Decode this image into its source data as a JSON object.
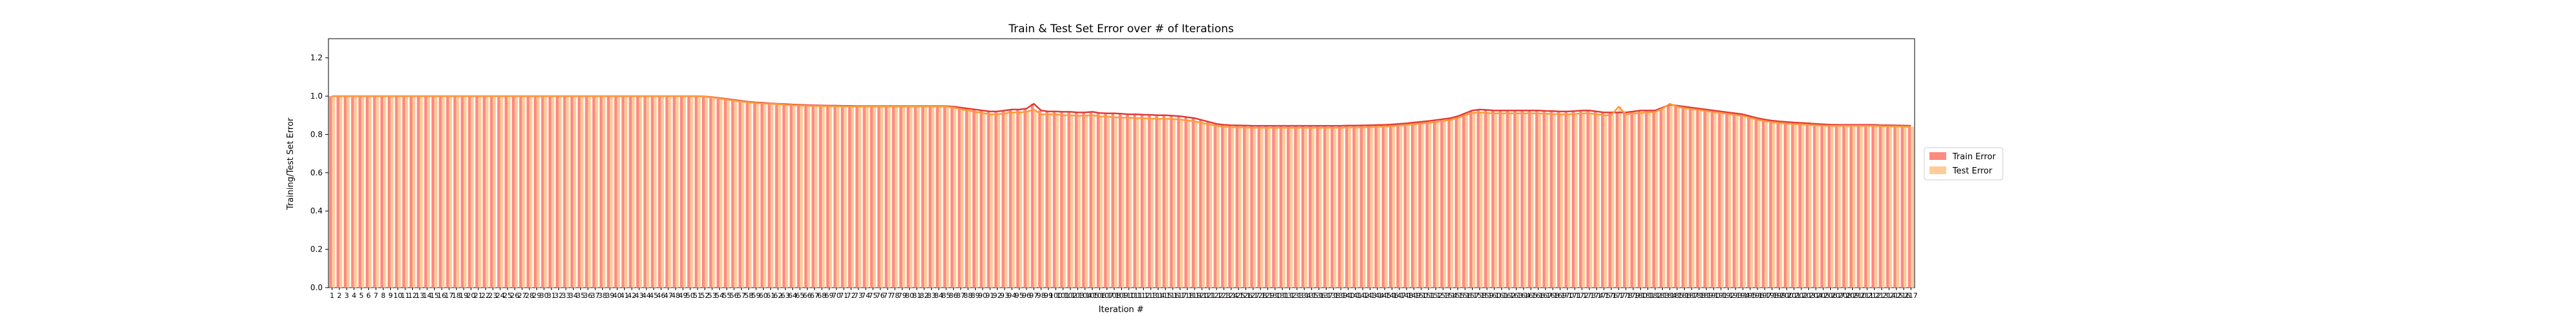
{
  "chart_data": {
    "type": "bar",
    "title": "Train & Test Set Error over # of Iterations",
    "xlabel": "Iteration #",
    "ylabel": "Training/Test Set Error",
    "ylim": [
      0.0,
      1.3
    ],
    "yticks": [
      0.0,
      0.2,
      0.4,
      0.6,
      0.8,
      1.0,
      1.2
    ],
    "legend_position": "right",
    "grid": false,
    "x_start": 1,
    "x_end": 200,
    "series": [
      {
        "name": "Train Error",
        "color": "#ff8a80",
        "line_color": "#e53935",
        "values": [
          1.0,
          1.0,
          1.0,
          1.0,
          1.0,
          1.0,
          1.0,
          1.0,
          1.0,
          1.0,
          1.0,
          1.0,
          1.0,
          1.0,
          1.0,
          1.0,
          1.0,
          1.0,
          1.0,
          1.0,
          1.0,
          1.0,
          1.0,
          1.0,
          1.0,
          1.0,
          1.0,
          1.0,
          1.0,
          1.0,
          1.0,
          1.0,
          1.0,
          1.0,
          1.0,
          1.0,
          1.0,
          1.0,
          1.0,
          1.0,
          1.0,
          1.0,
          1.0,
          1.0,
          1.0,
          1.0,
          1.0,
          1.0,
          1.0,
          1.0,
          1.0,
          0.998,
          0.995,
          0.99,
          0.985,
          0.98,
          0.975,
          0.97,
          0.967,
          0.965,
          0.962,
          0.96,
          0.958,
          0.956,
          0.955,
          0.953,
          0.952,
          0.951,
          0.95,
          0.95,
          0.949,
          0.949,
          0.948,
          0.948,
          0.948,
          0.948,
          0.948,
          0.948,
          0.948,
          0.948,
          0.948,
          0.948,
          0.948,
          0.948,
          0.948,
          0.945,
          0.94,
          0.935,
          0.93,
          0.925,
          0.92,
          0.92,
          0.925,
          0.93,
          0.93,
          0.935,
          0.96,
          0.925,
          0.92,
          0.92,
          0.918,
          0.918,
          0.915,
          0.915,
          0.918,
          0.912,
          0.91,
          0.91,
          0.908,
          0.905,
          0.905,
          0.903,
          0.902,
          0.9,
          0.9,
          0.898,
          0.895,
          0.89,
          0.885,
          0.875,
          0.865,
          0.855,
          0.85,
          0.848,
          0.847,
          0.846,
          0.845,
          0.845,
          0.845,
          0.845,
          0.845,
          0.845,
          0.845,
          0.845,
          0.845,
          0.845,
          0.845,
          0.845,
          0.845,
          0.846,
          0.846,
          0.847,
          0.848,
          0.849,
          0.85,
          0.852,
          0.855,
          0.858,
          0.862,
          0.866,
          0.87,
          0.875,
          0.88,
          0.885,
          0.895,
          0.91,
          0.925,
          0.93,
          0.928,
          0.925,
          0.925,
          0.925,
          0.925,
          0.925,
          0.925,
          0.925,
          0.923,
          0.922,
          0.92,
          0.92,
          0.922,
          0.925,
          0.925,
          0.92,
          0.915,
          0.915,
          0.915,
          0.915,
          0.92,
          0.925,
          0.925,
          0.925,
          0.94,
          0.955,
          0.95,
          0.945,
          0.94,
          0.935,
          0.93,
          0.925,
          0.92,
          0.915,
          0.91,
          0.905,
          0.895,
          0.885,
          0.878,
          0.872,
          0.868,
          0.865,
          0.862,
          0.86,
          0.858,
          0.855,
          0.853,
          0.851,
          0.85,
          0.85,
          0.85,
          0.85,
          0.85,
          0.85,
          0.848,
          0.848,
          0.847,
          0.846,
          0.845
        ]
      },
      {
        "name": "Test Error",
        "color": "#ffcc99",
        "line_color": "#ff9a3c",
        "values": [
          1.0,
          1.0,
          1.0,
          1.0,
          1.0,
          1.0,
          1.0,
          1.0,
          1.0,
          1.0,
          1.0,
          1.0,
          1.0,
          1.0,
          1.0,
          1.0,
          1.0,
          1.0,
          1.0,
          1.0,
          1.0,
          1.0,
          1.0,
          1.0,
          1.0,
          1.0,
          1.0,
          1.0,
          1.0,
          1.0,
          1.0,
          1.0,
          1.0,
          1.0,
          1.0,
          1.0,
          1.0,
          1.0,
          1.0,
          1.0,
          1.0,
          1.0,
          1.0,
          1.0,
          1.0,
          1.0,
          1.0,
          1.0,
          1.0,
          1.0,
          1.0,
          0.997,
          0.993,
          0.988,
          0.982,
          0.977,
          0.972,
          0.967,
          0.964,
          0.962,
          0.96,
          0.958,
          0.955,
          0.953,
          0.952,
          0.95,
          0.949,
          0.948,
          0.947,
          0.947,
          0.946,
          0.946,
          0.946,
          0.946,
          0.946,
          0.946,
          0.946,
          0.946,
          0.946,
          0.946,
          0.946,
          0.946,
          0.946,
          0.946,
          0.946,
          0.94,
          0.932,
          0.925,
          0.918,
          0.912,
          0.905,
          0.905,
          0.91,
          0.915,
          0.915,
          0.918,
          0.93,
          0.905,
          0.905,
          0.905,
          0.9,
          0.9,
          0.898,
          0.898,
          0.9,
          0.895,
          0.893,
          0.89,
          0.888,
          0.888,
          0.885,
          0.885,
          0.883,
          0.882,
          0.882,
          0.88,
          0.878,
          0.873,
          0.868,
          0.86,
          0.852,
          0.845,
          0.84,
          0.838,
          0.837,
          0.836,
          0.835,
          0.835,
          0.835,
          0.835,
          0.835,
          0.835,
          0.835,
          0.835,
          0.835,
          0.835,
          0.835,
          0.835,
          0.835,
          0.836,
          0.836,
          0.837,
          0.838,
          0.84,
          0.842,
          0.844,
          0.847,
          0.85,
          0.853,
          0.857,
          0.861,
          0.865,
          0.87,
          0.876,
          0.885,
          0.9,
          0.912,
          0.915,
          0.912,
          0.91,
          0.91,
          0.91,
          0.91,
          0.91,
          0.91,
          0.91,
          0.908,
          0.907,
          0.905,
          0.905,
          0.907,
          0.91,
          0.91,
          0.905,
          0.9,
          0.9,
          0.945,
          0.905,
          0.91,
          0.912,
          0.915,
          0.918,
          0.935,
          0.96,
          0.945,
          0.938,
          0.932,
          0.928,
          0.922,
          0.917,
          0.912,
          0.907,
          0.902,
          0.897,
          0.887,
          0.877,
          0.87,
          0.864,
          0.86,
          0.857,
          0.854,
          0.852,
          0.85,
          0.848,
          0.846,
          0.845,
          0.845,
          0.845,
          0.845,
          0.845,
          0.845,
          0.845,
          0.843,
          0.843,
          0.842,
          0.841,
          0.84
        ]
      }
    ]
  }
}
